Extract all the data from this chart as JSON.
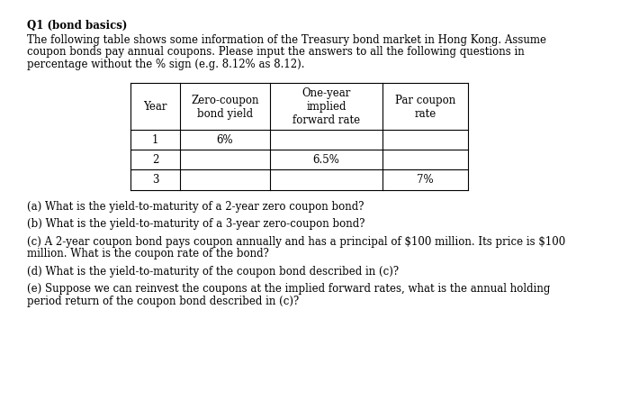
{
  "title": "Q1 (bond basics)",
  "intro_lines": [
    "The following table shows some information of the Treasury bond market in Hong Kong. Assume",
    "coupon bonds pay annual coupons. Please input the answers to all the following questions in",
    "percentage without the % sign (e.g. 8.12% as 8.12)."
  ],
  "table": {
    "col_headers": [
      "Year",
      "Zero-coupon\nbond yield",
      "One-year\nimplied\nforward rate",
      "Par coupon\nrate"
    ],
    "rows": [
      [
        "1",
        "6%",
        "",
        ""
      ],
      [
        "2",
        "",
        "6.5%",
        ""
      ],
      [
        "3",
        "",
        "",
        "7%"
      ]
    ]
  },
  "questions": [
    [
      "(a) What is the yield-to-maturity of a 2-year zero coupon bond?"
    ],
    [
      "(b) What is the yield-to-maturity of a 3-year zero-coupon bond?"
    ],
    [
      "(c) A 2-year coupon bond pays coupon annually and has a principal of $100 million. Its price is $100",
      "million. What is the coupon rate of the bond?"
    ],
    [
      "(d) What is the yield-to-maturity of the coupon bond described in (c)?"
    ],
    [
      "(e) Suppose we can reinvest the coupons at the implied forward rates, what is the annual holding",
      "period return of the coupon bond described in (c)?"
    ]
  ],
  "bg_color": "#ffffff",
  "text_color": "#000000",
  "font_size": 8.5,
  "title_font_size": 8.5
}
